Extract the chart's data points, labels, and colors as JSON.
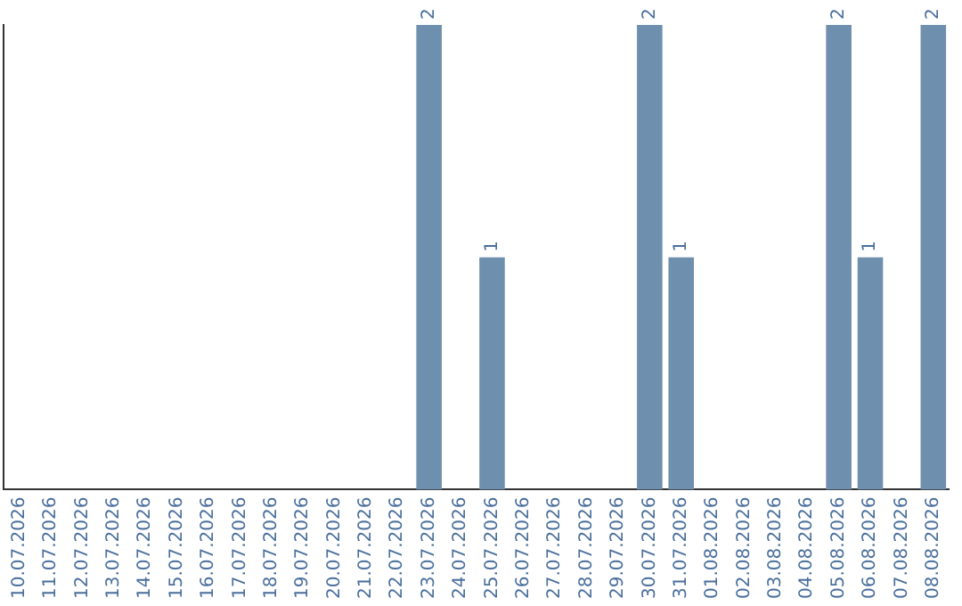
{
  "chart_data": {
    "type": "bar",
    "categories": [
      "10.07.2026",
      "11.07.2026",
      "12.07.2026",
      "13.07.2026",
      "14.07.2026",
      "15.07.2026",
      "16.07.2026",
      "17.07.2026",
      "18.07.2026",
      "19.07.2026",
      "20.07.2026",
      "21.07.2026",
      "22.07.2026",
      "23.07.2026",
      "24.07.2026",
      "25.07.2026",
      "26.07.2026",
      "27.07.2026",
      "28.07.2026",
      "29.07.2026",
      "30.07.2026",
      "31.07.2026",
      "01.08.2026",
      "02.08.2026",
      "03.08.2026",
      "04.08.2026",
      "05.08.2026",
      "06.08.2026",
      "07.08.2026",
      "08.08.2026"
    ],
    "values": [
      null,
      null,
      null,
      null,
      null,
      null,
      null,
      null,
      null,
      null,
      null,
      null,
      null,
      2,
      null,
      1,
      null,
      null,
      null,
      null,
      2,
      1,
      null,
      null,
      null,
      null,
      2,
      1,
      null,
      2
    ],
    "data_labels": true,
    "color": "#6e8fad",
    "grid": false,
    "legend": false
  }
}
